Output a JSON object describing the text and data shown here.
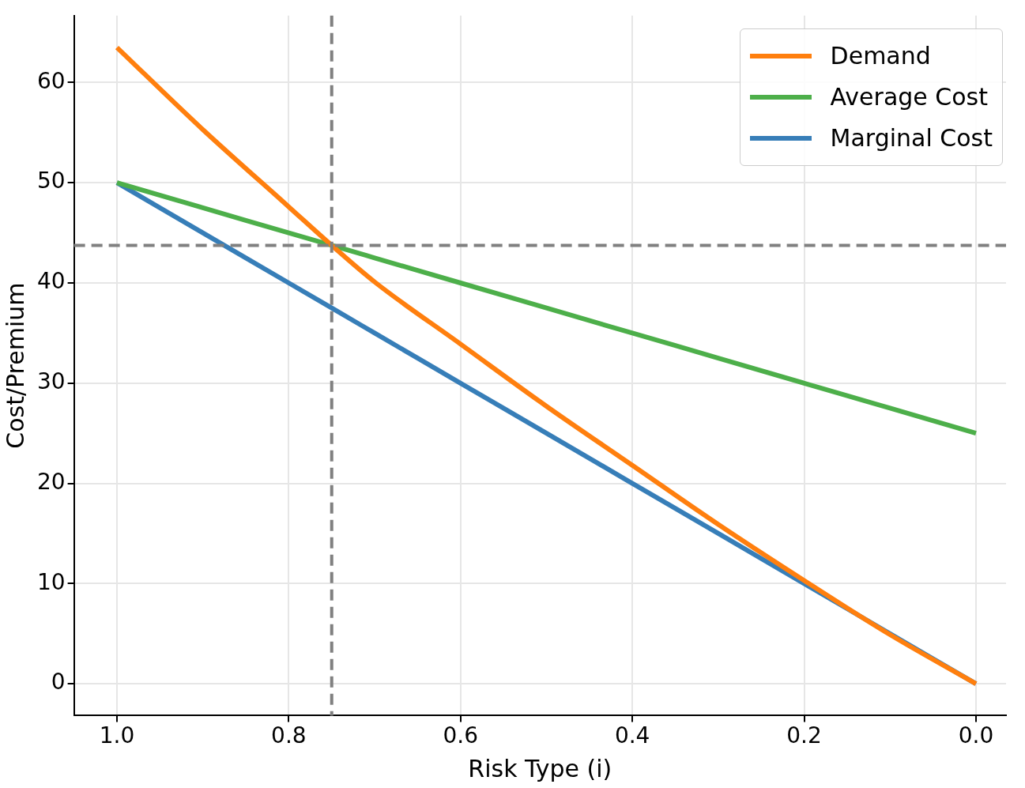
{
  "chart_data": {
    "type": "line",
    "xlabel": "Risk Type (i)",
    "ylabel": "Cost/Premium",
    "x": [
      1.0,
      0.9,
      0.8,
      0.75,
      0.7,
      0.6,
      0.5,
      0.4,
      0.3,
      0.2,
      0.1,
      0.0
    ],
    "series": [
      {
        "name": "Demand",
        "color": "#ff7f0e",
        "values": [
          63.5,
          55.3,
          47.6,
          43.75,
          40.1,
          33.9,
          27.7,
          21.8,
          15.9,
          10.3,
          4.9,
          0
        ]
      },
      {
        "name": "Average Cost",
        "color": "#4daf4a",
        "values": [
          50,
          47.5,
          45,
          43.75,
          42.5,
          40,
          37.5,
          35,
          32.5,
          30,
          27.5,
          25
        ]
      },
      {
        "name": "Marginal Cost",
        "color": "#377eb8",
        "values": [
          50,
          45,
          40,
          37.5,
          35,
          30,
          25,
          20,
          15,
          10,
          5,
          0
        ]
      }
    ],
    "xlim": [
      1.05,
      -0.035
    ],
    "ylim": [
      -3.175,
      66.675
    ],
    "xticks": [
      {
        "value": 1.0,
        "label": "1.0"
      },
      {
        "value": 0.8,
        "label": "0.8"
      },
      {
        "value": 0.6,
        "label": "0.6"
      },
      {
        "value": 0.4,
        "label": "0.4"
      },
      {
        "value": 0.2,
        "label": "0.2"
      },
      {
        "value": 0.0,
        "label": "0.0"
      }
    ],
    "yticks": [
      0,
      10,
      20,
      30,
      40,
      50,
      60
    ],
    "ref_lines": [
      {
        "axis": "x",
        "value": 0.75,
        "color": "#808080",
        "line_style": "dashed"
      },
      {
        "axis": "y",
        "value": 43.75,
        "color": "#808080",
        "line_style": "dashed"
      }
    ],
    "grid": true,
    "legend": "top right",
    "marker": "none",
    "line_style": "solid"
  }
}
